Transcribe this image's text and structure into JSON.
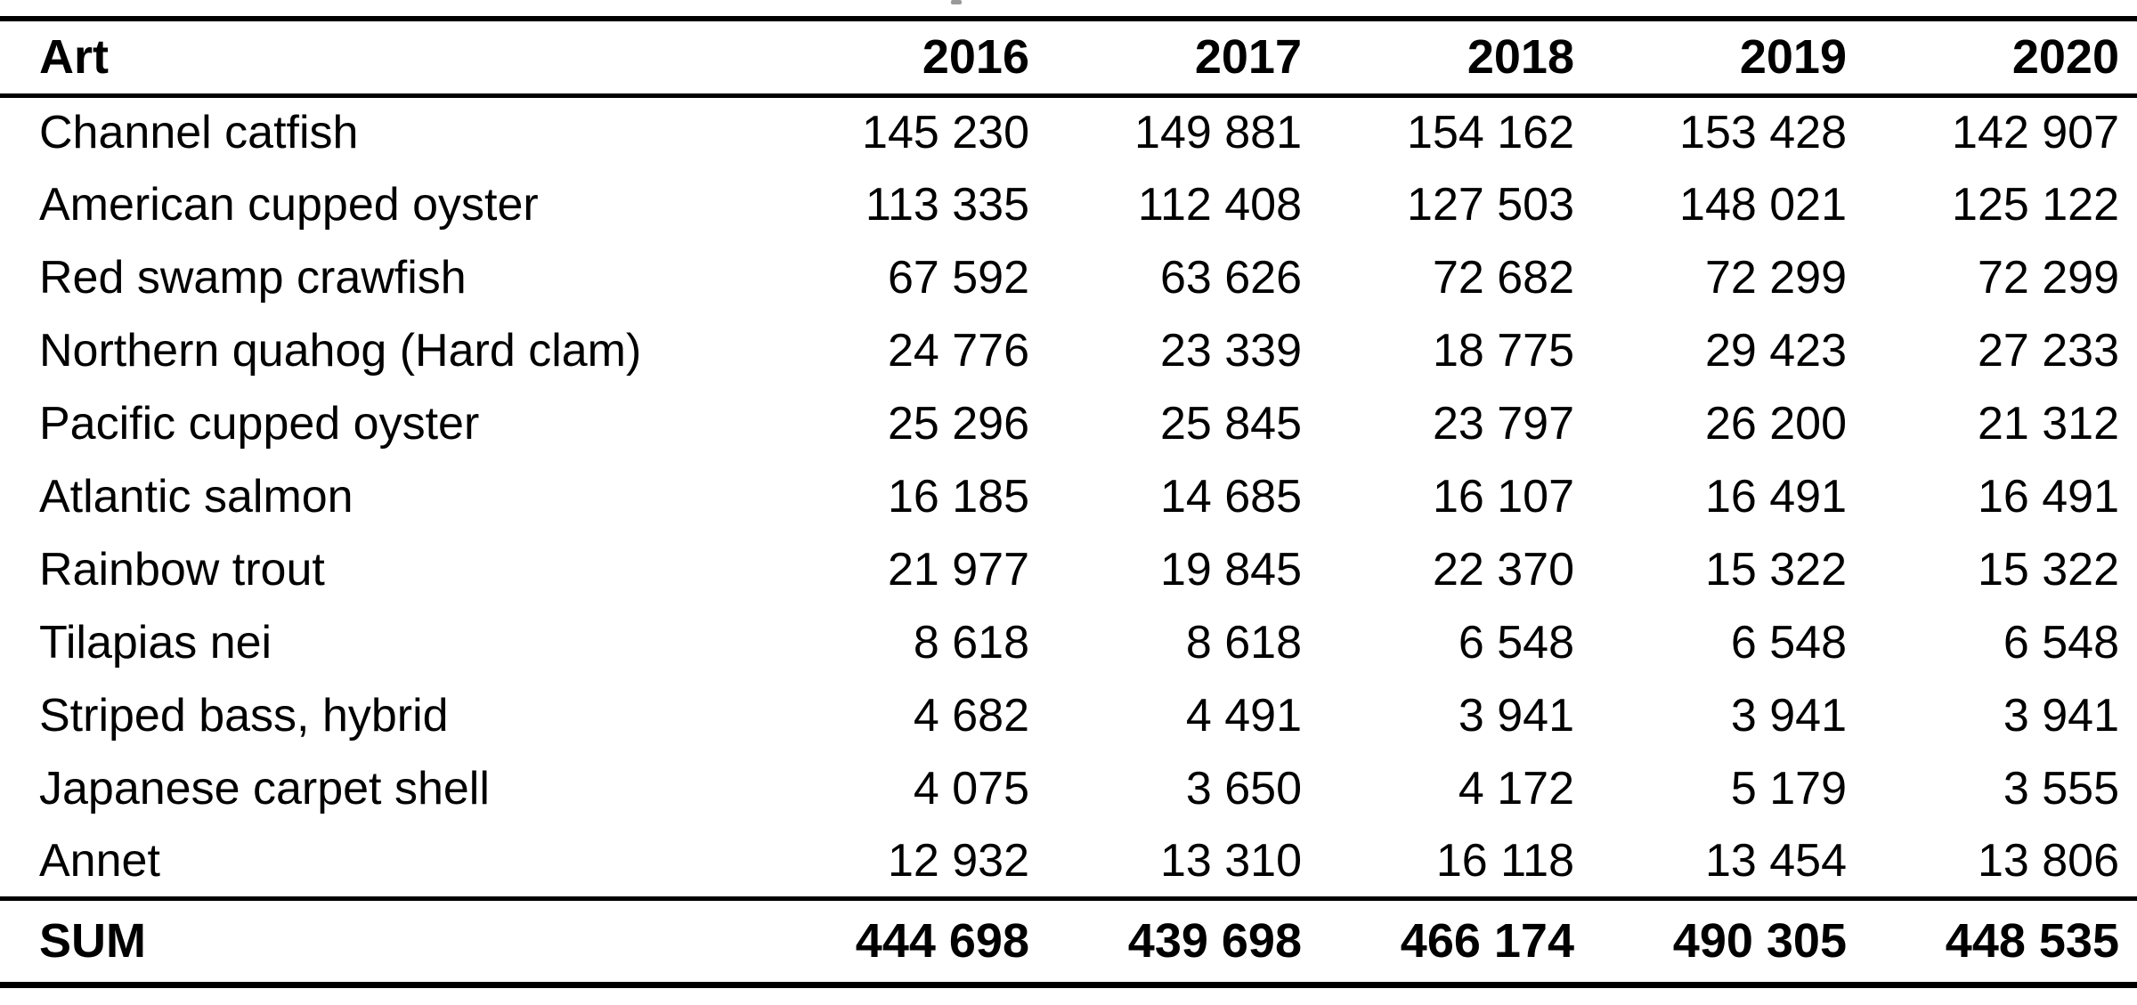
{
  "table": {
    "columns": [
      "Art",
      "2016",
      "2017",
      "2018",
      "2019",
      "2020"
    ],
    "rows": [
      {
        "label": "Channel catfish",
        "values": [
          "145 230",
          "149 881",
          "154 162",
          "153 428",
          "142 907"
        ]
      },
      {
        "label": "American cupped oyster",
        "values": [
          "113 335",
          "112 408",
          "127 503",
          "148 021",
          "125 122"
        ]
      },
      {
        "label": "Red swamp crawfish",
        "values": [
          "67 592",
          "63 626",
          "72 682",
          "72 299",
          "72 299"
        ]
      },
      {
        "label": "Northern quahog (Hard clam)",
        "values": [
          "24 776",
          "23 339",
          "18 775",
          "29 423",
          "27 233"
        ]
      },
      {
        "label": "Pacific cupped oyster",
        "values": [
          "25 296",
          "25 845",
          "23 797",
          "26 200",
          "21 312"
        ]
      },
      {
        "label": "Atlantic salmon",
        "values": [
          "16 185",
          "14 685",
          "16 107",
          "16 491",
          "16 491"
        ]
      },
      {
        "label": "Rainbow trout",
        "values": [
          "21 977",
          "19 845",
          "22 370",
          "15 322",
          "15 322"
        ]
      },
      {
        "label": "Tilapias nei",
        "values": [
          "8 618",
          "8 618",
          "6 548",
          "6 548",
          "6 548"
        ]
      },
      {
        "label": "Striped bass, hybrid",
        "values": [
          "4 682",
          "4 491",
          "3 941",
          "3 941",
          "3 941"
        ]
      },
      {
        "label": "Japanese carpet shell",
        "values": [
          "4 075",
          "3 650",
          "4 172",
          "5 179",
          "3 555"
        ]
      },
      {
        "label": "Annet",
        "values": [
          "12 932",
          "13 310",
          "16 118",
          "13 454",
          "13 806"
        ]
      }
    ],
    "sum_row": {
      "label": "SUM",
      "values": [
        "444 698",
        "439 698",
        "466 174",
        "490 305",
        "448 535"
      ]
    }
  },
  "colors": {
    "text": "#000000",
    "background": "#ffffff",
    "rule": "#000000"
  }
}
